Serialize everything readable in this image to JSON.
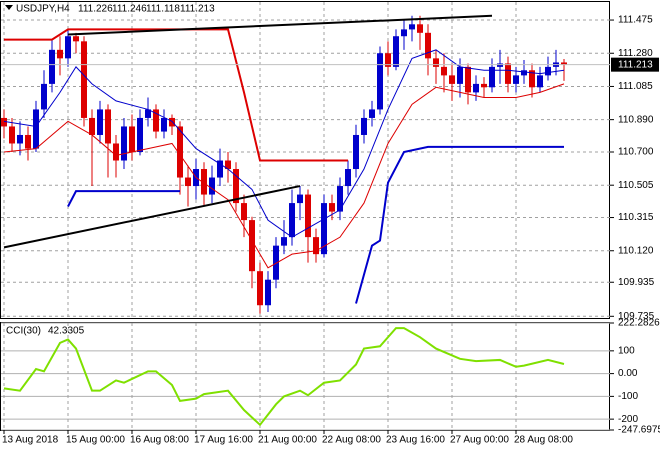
{
  "chart_data": {
    "type": "candlestick",
    "symbol": "USDJPY,H4",
    "up_color": "#0000cc",
    "down_color": "#dd0000",
    "grid": true,
    "categories": [
      "13 Aug 2018",
      null,
      null,
      null,
      null,
      null,
      null,
      null,
      "15 Aug 00:00",
      null,
      null,
      null,
      null,
      null,
      null,
      null,
      "16 Aug 08:00",
      null,
      null,
      null,
      null,
      null,
      null,
      null,
      "17 Aug 16:00",
      null,
      null,
      null,
      null,
      null,
      null,
      null,
      "21 Aug 00:00",
      null,
      null,
      null,
      null,
      null,
      null,
      null,
      "22 Aug 08:00",
      null,
      null,
      null,
      null,
      null,
      null,
      null,
      "23 Aug 16:00",
      null,
      null,
      null,
      null,
      null,
      null,
      null,
      "27 Aug 00:00",
      null,
      null,
      null,
      null,
      null,
      null,
      null,
      "28 Aug 08:00",
      null,
      null,
      null,
      null,
      null,
      null
    ],
    "ohlc": [
      [
        110.9,
        110.95,
        110.78,
        110.85
      ],
      [
        110.85,
        110.9,
        110.7,
        110.75
      ],
      [
        110.75,
        110.88,
        110.68,
        110.8
      ],
      [
        110.8,
        110.85,
        110.65,
        110.72
      ],
      [
        110.72,
        111.0,
        110.7,
        110.95
      ],
      [
        110.95,
        111.18,
        110.9,
        111.1
      ],
      [
        111.1,
        111.36,
        111.05,
        111.3
      ],
      [
        111.3,
        111.38,
        111.15,
        111.25
      ],
      [
        111.25,
        111.42,
        111.2,
        111.38
      ],
      [
        111.38,
        111.4,
        111.28,
        111.35
      ],
      [
        111.35,
        111.38,
        110.85,
        110.9
      ],
      [
        110.9,
        110.95,
        110.5,
        110.8
      ],
      [
        110.8,
        111.0,
        110.75,
        110.95
      ],
      [
        110.95,
        110.98,
        110.55,
        110.75
      ],
      [
        110.75,
        110.8,
        110.55,
        110.65
      ],
      [
        110.65,
        110.9,
        110.6,
        110.85
      ],
      [
        110.85,
        110.92,
        110.65,
        110.7
      ],
      [
        110.7,
        110.95,
        110.68,
        110.9
      ],
      [
        110.9,
        111.02,
        110.85,
        110.95
      ],
      [
        110.95,
        110.98,
        110.78,
        110.82
      ],
      [
        110.82,
        110.95,
        110.78,
        110.9
      ],
      [
        110.9,
        110.92,
        110.8,
        110.85
      ],
      [
        110.85,
        110.88,
        110.45,
        110.55
      ],
      [
        110.55,
        110.62,
        110.38,
        110.5
      ],
      [
        110.5,
        110.66,
        110.42,
        110.6
      ],
      [
        110.6,
        110.64,
        110.38,
        110.45
      ],
      [
        110.45,
        110.62,
        110.4,
        110.55
      ],
      [
        110.55,
        110.72,
        110.5,
        110.65
      ],
      [
        110.65,
        110.7,
        110.52,
        110.6
      ],
      [
        110.6,
        110.64,
        110.35,
        110.4
      ],
      [
        110.4,
        110.45,
        110.2,
        110.3
      ],
      [
        110.3,
        110.32,
        109.9,
        110.0
      ],
      [
        110.0,
        110.05,
        109.75,
        109.8
      ],
      [
        109.8,
        110.0,
        109.76,
        109.95
      ],
      [
        109.95,
        110.2,
        109.9,
        110.15
      ],
      [
        110.15,
        110.3,
        110.1,
        110.2
      ],
      [
        110.2,
        110.48,
        110.15,
        110.4
      ],
      [
        110.4,
        110.5,
        110.3,
        110.45
      ],
      [
        110.45,
        110.48,
        110.05,
        110.2
      ],
      [
        110.2,
        110.25,
        110.05,
        110.1
      ],
      [
        110.1,
        110.45,
        110.08,
        110.4
      ],
      [
        110.4,
        110.45,
        110.3,
        110.35
      ],
      [
        110.35,
        110.55,
        110.3,
        110.5
      ],
      [
        110.5,
        110.65,
        110.45,
        110.6
      ],
      [
        110.6,
        110.86,
        110.55,
        110.8
      ],
      [
        110.8,
        110.95,
        110.75,
        110.9
      ],
      [
        110.9,
        111.0,
        110.85,
        110.95
      ],
      [
        110.95,
        111.32,
        110.92,
        111.28
      ],
      [
        111.28,
        111.35,
        111.15,
        111.2
      ],
      [
        111.2,
        111.42,
        111.18,
        111.38
      ],
      [
        111.38,
        111.48,
        111.3,
        111.42
      ],
      [
        111.42,
        111.5,
        111.35,
        111.45
      ],
      [
        111.45,
        111.5,
        111.3,
        111.4
      ],
      [
        111.4,
        111.45,
        111.15,
        111.25
      ],
      [
        111.25,
        111.3,
        111.1,
        111.2
      ],
      [
        111.2,
        111.28,
        111.05,
        111.15
      ],
      [
        111.15,
        111.22,
        111.0,
        111.1
      ],
      [
        111.1,
        111.25,
        111.02,
        111.2
      ],
      [
        111.2,
        111.22,
        110.98,
        111.05
      ],
      [
        111.05,
        111.15,
        111.0,
        111.1
      ],
      [
        111.1,
        111.14,
        111.02,
        111.08
      ],
      [
        111.08,
        111.25,
        111.05,
        111.2
      ],
      [
        111.2,
        111.3,
        111.1,
        111.22
      ],
      [
        111.22,
        111.26,
        111.05,
        111.1
      ],
      [
        111.1,
        111.2,
        111.05,
        111.15
      ],
      [
        111.15,
        111.24,
        111.1,
        111.18
      ],
      [
        111.18,
        111.22,
        111.02,
        111.08
      ],
      [
        111.08,
        111.2,
        111.05,
        111.15
      ],
      [
        111.15,
        111.26,
        111.12,
        111.2
      ],
      [
        111.2,
        111.3,
        111.15,
        111.226
      ],
      [
        111.226,
        111.246,
        111.118,
        111.213
      ]
    ],
    "ylim": [
      109.725,
      111.581
    ],
    "yticks": [
      111.475,
      {
        "value": 111.28,
        "label": "111.280"
      },
      111.085,
      {
        "value": 110.89,
        "label": "110.890"
      },
      {
        "value": 110.7,
        "label": "110.700"
      },
      110.505,
      110.315,
      {
        "value": 110.12,
        "label": "110.120"
      },
      109.935,
      109.735
    ],
    "lines": [
      {
        "color": "#0000cc",
        "width": 1,
        "x": [
          0,
          4,
          7,
          9,
          11,
          14,
          18,
          21,
          24,
          28,
          31,
          33,
          36,
          39,
          42,
          45,
          48,
          51,
          54,
          57,
          60,
          63,
          67,
          70
        ],
        "values": [
          110.88,
          110.85,
          111.05,
          111.2,
          111.1,
          111.0,
          110.95,
          110.88,
          110.72,
          110.6,
          110.48,
          110.3,
          110.2,
          110.28,
          110.36,
          110.6,
          110.95,
          111.25,
          111.3,
          111.2,
          111.18,
          111.18,
          111.16,
          111.18
        ]
      },
      {
        "color": "#dd0000",
        "width": 1,
        "x": [
          0,
          4,
          8,
          11,
          14,
          18,
          21,
          24,
          28,
          31,
          33,
          36,
          39,
          42,
          45,
          48,
          51,
          54,
          57,
          60,
          64,
          67,
          70
        ],
        "values": [
          110.7,
          110.72,
          110.88,
          110.8,
          110.68,
          110.72,
          110.75,
          110.55,
          110.42,
          110.18,
          110.02,
          110.1,
          110.12,
          110.2,
          110.4,
          110.75,
          110.98,
          111.08,
          111.05,
          111.02,
          111.02,
          111.05,
          111.1
        ]
      },
      {
        "color": "#dd0000",
        "width": 2,
        "x": [
          0,
          6,
          8,
          28,
          30,
          32,
          43
        ],
        "values": [
          111.36,
          111.36,
          111.42,
          111.42,
          111.05,
          110.65,
          110.65
        ]
      },
      {
        "color": "#0000cc",
        "width": 2,
        "x": [
          8,
          9,
          22
        ],
        "values": [
          110.38,
          110.47,
          110.47
        ]
      },
      {
        "color": "#0000cc",
        "width": 2,
        "x": [
          44,
          46,
          47,
          48,
          50,
          53,
          70
        ],
        "values": [
          109.81,
          110.15,
          110.18,
          110.52,
          110.7,
          110.73,
          110.73
        ]
      },
      {
        "color": "#000000",
        "width": 2,
        "x": [
          0,
          37
        ],
        "values": [
          110.14,
          110.5
        ]
      },
      {
        "color": "#000000",
        "width": 2,
        "x": [
          8,
          61
        ],
        "values": [
          111.39,
          111.5
        ]
      }
    ],
    "cci": {
      "label": "CCI(30)",
      "color": "#7fe000",
      "x": [
        0,
        2,
        4,
        5,
        7,
        8,
        9,
        11,
        12,
        14,
        15,
        18,
        19,
        21,
        22,
        24,
        25,
        28,
        30,
        32,
        34,
        35,
        37,
        38,
        40,
        42,
        44,
        45,
        47,
        49,
        50,
        52,
        54,
        57,
        59,
        62,
        64,
        65,
        68,
        70
      ],
      "values": [
        -65,
        -75,
        20,
        10,
        135,
        150,
        110,
        -75,
        -75,
        -30,
        -40,
        10,
        10,
        -50,
        -120,
        -110,
        -90,
        -75,
        -160,
        -225,
        -135,
        -100,
        -75,
        -95,
        -40,
        -30,
        40,
        110,
        120,
        200,
        200,
        160,
        110,
        65,
        55,
        60,
        30,
        35,
        60,
        42.3305
      ],
      "ylim": [
        -247.6975,
        222.2826
      ],
      "yticks": [
        222.2826,
        100,
        {
          "value": 0,
          "label": "0.00"
        },
        -100,
        -200,
        -247.6975
      ]
    }
  }
}
